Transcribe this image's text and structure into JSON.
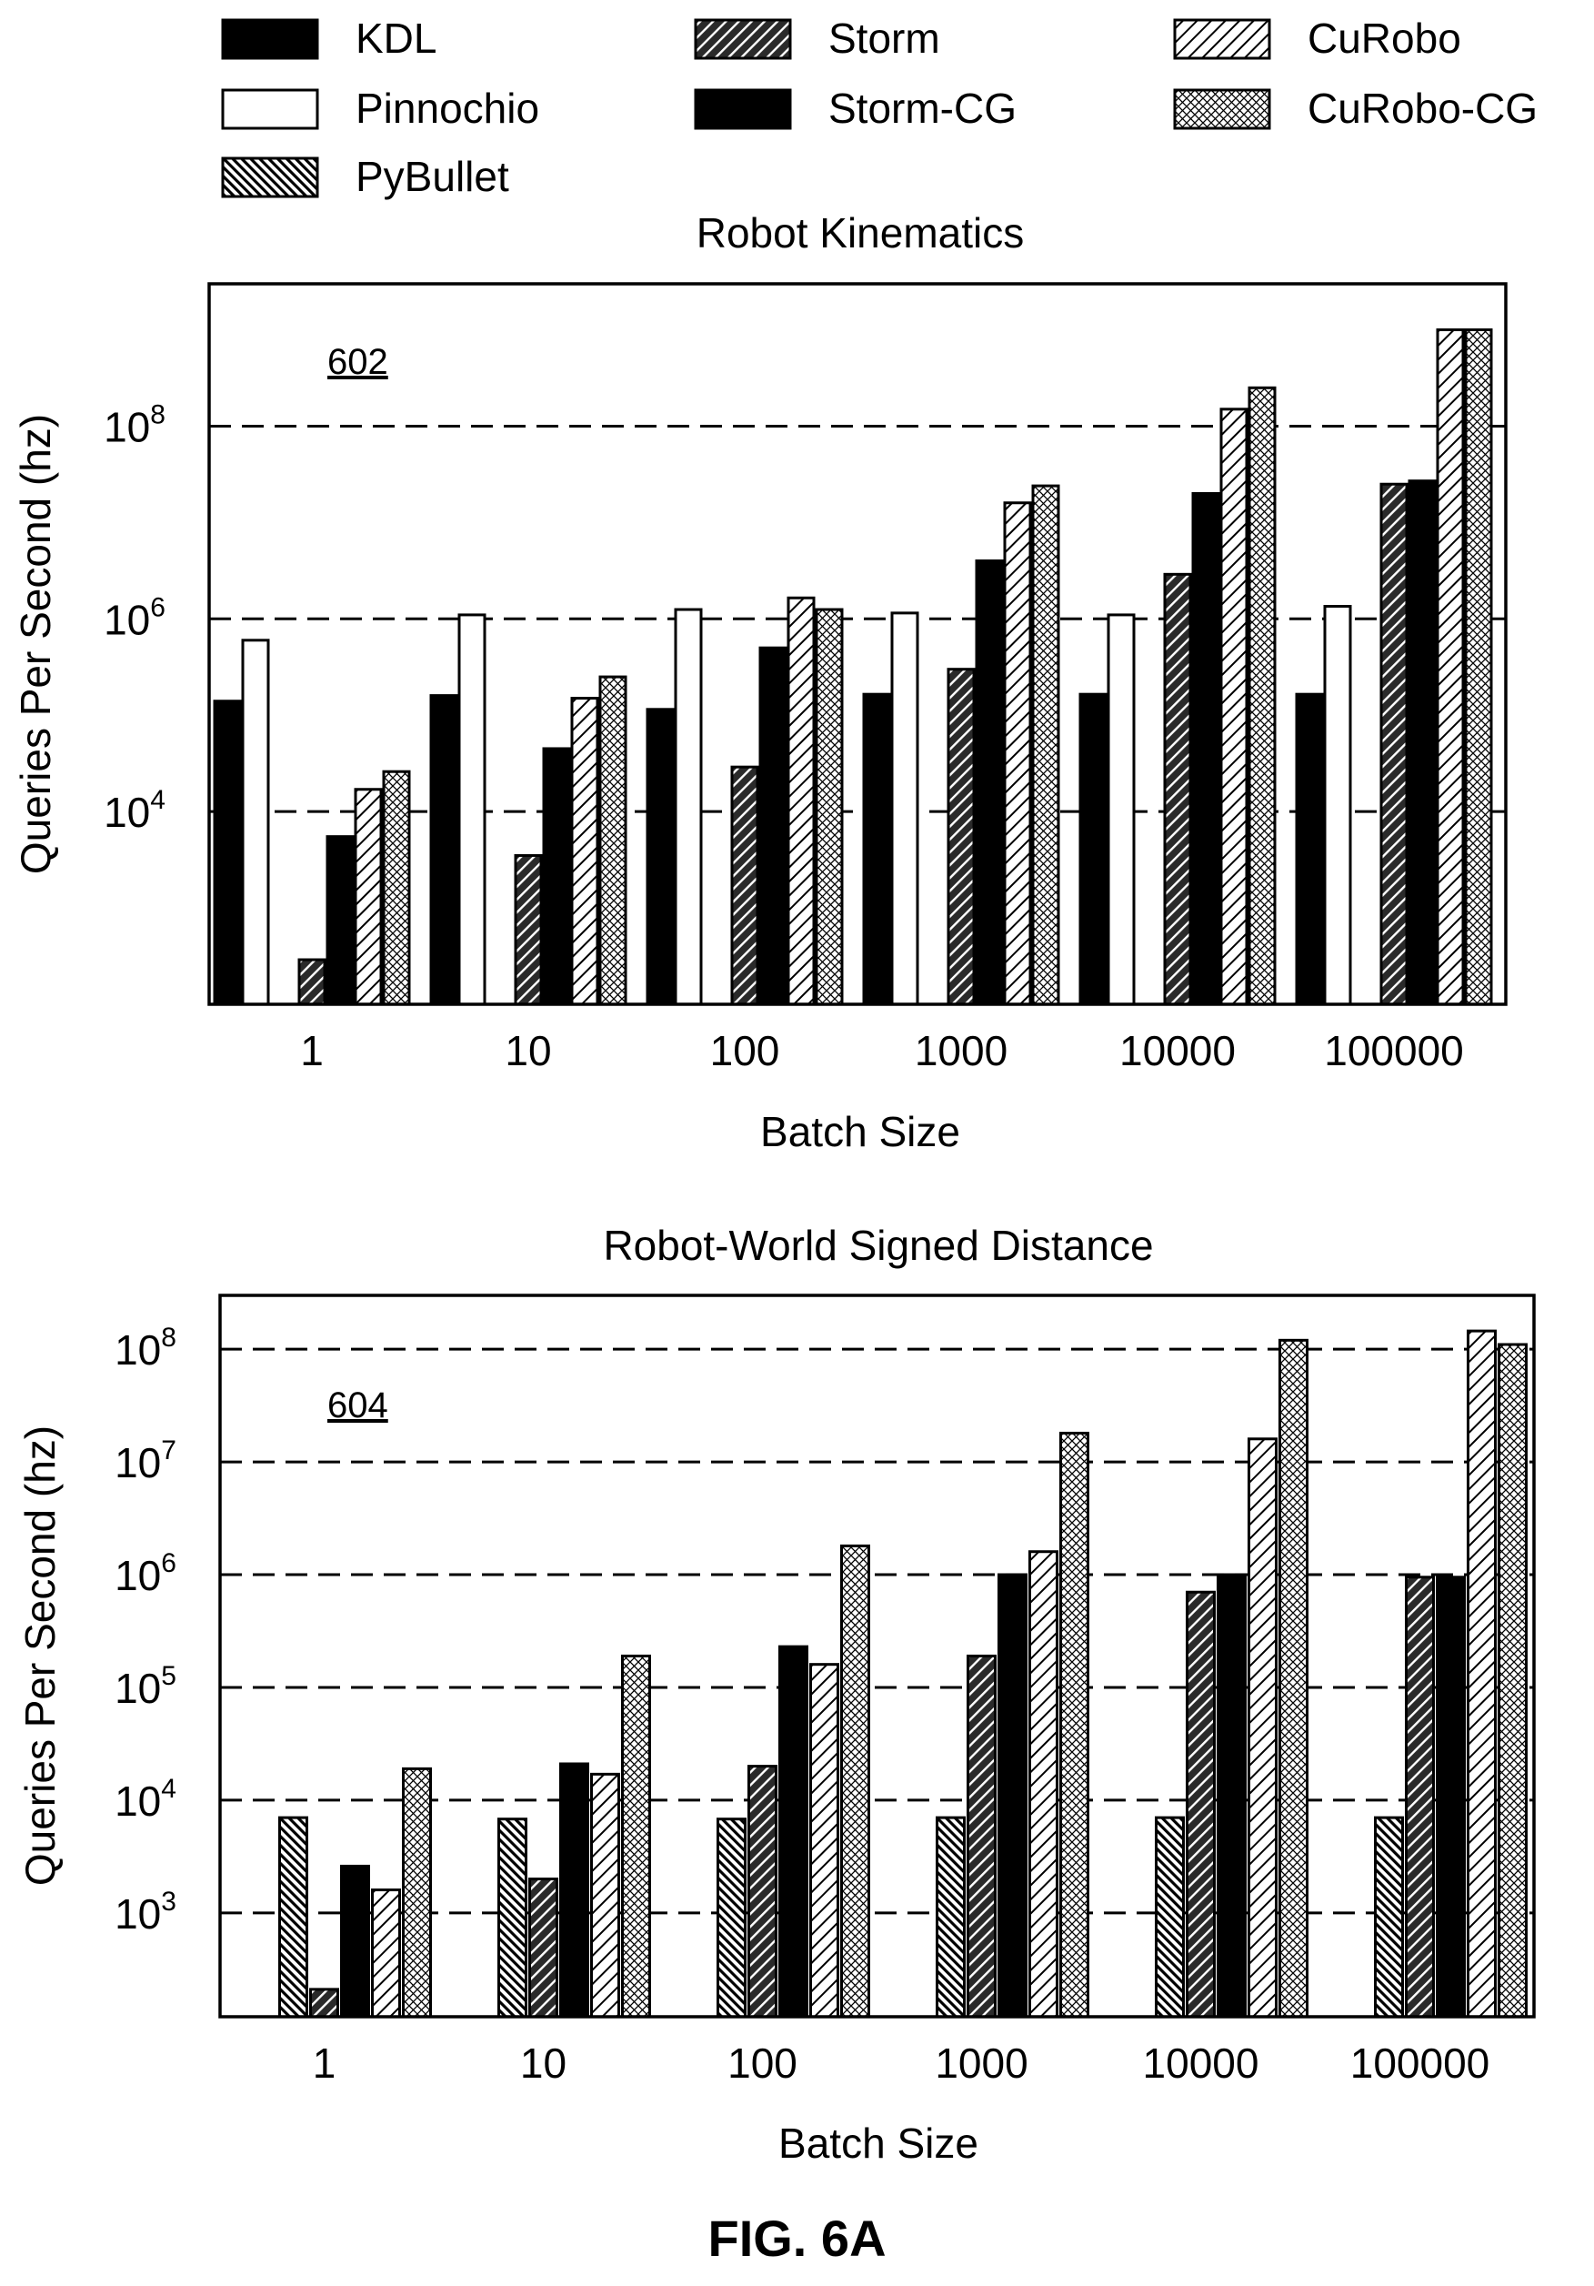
{
  "figure_caption": "FIG. 6A",
  "legend": [
    {
      "name": "KDL",
      "pattern": "solid"
    },
    {
      "name": "Pinnochio",
      "pattern": "white"
    },
    {
      "name": "PyBullet",
      "pattern": "dense-backslash"
    },
    {
      "name": "Storm",
      "pattern": "dark-slash"
    },
    {
      "name": "Storm-CG",
      "pattern": "solid"
    },
    {
      "name": "CuRobo",
      "pattern": "light-slash"
    },
    {
      "name": "CuRobo-CG",
      "pattern": "crosshatch"
    }
  ],
  "colors": {
    "ink": "#000000",
    "background": "#ffffff",
    "grid": "#000000"
  },
  "chart_data": [
    {
      "type": "bar",
      "title": "Robot Kinematics",
      "reference_numeral": "602",
      "xlabel": "Batch Size",
      "ylabel": "Queries Per Second (hz)",
      "yscale": "log",
      "ylim": [
        100,
        3000000000
      ],
      "yticks": [
        {
          "value": 10000,
          "base": "10",
          "exp": "4"
        },
        {
          "value": 1000000,
          "base": "10",
          "exp": "6"
        },
        {
          "value": 100000000,
          "base": "10",
          "exp": "8"
        }
      ],
      "grid": "horizontal dashed at labeled ticks",
      "categories": [
        "1",
        "10",
        "100",
        "1000",
        "10000",
        "100000"
      ],
      "series": [
        {
          "name": "KDL",
          "values": [
            140000,
            160000,
            115000,
            165000,
            165000,
            165000
          ]
        },
        {
          "name": "Pinnochio",
          "values": [
            600000,
            1100000,
            1250000,
            1150000,
            1100000,
            1350000
          ]
        },
        {
          "name": "PyBullet",
          "values": [
            null,
            null,
            null,
            null,
            null,
            null
          ]
        },
        {
          "name": "Storm",
          "values": [
            290,
            3500,
            29000,
            300000,
            2900000,
            25000000
          ]
        },
        {
          "name": "Storm-CG",
          "values": [
            5500,
            45000,
            500000,
            4000000,
            20000000,
            27000000
          ]
        },
        {
          "name": "CuRobo",
          "values": [
            17000,
            150000,
            1650000,
            16000000,
            150000000,
            1000000000
          ]
        },
        {
          "name": "CuRobo-CG",
          "values": [
            26000,
            250000,
            1250000,
            24000000,
            250000000,
            1000000000
          ]
        }
      ]
    },
    {
      "type": "bar",
      "title": "Robot-World Signed Distance",
      "reference_numeral": "604",
      "xlabel": "Batch Size",
      "ylabel": "Queries Per Second (hz)",
      "yscale": "log",
      "ylim": [
        120,
        300000000
      ],
      "yticks": [
        {
          "value": 1000,
          "base": "10",
          "exp": "3"
        },
        {
          "value": 10000,
          "base": "10",
          "exp": "4"
        },
        {
          "value": 100000,
          "base": "10",
          "exp": "5"
        },
        {
          "value": 1000000,
          "base": "10",
          "exp": "6"
        },
        {
          "value": 10000000,
          "base": "10",
          "exp": "7"
        },
        {
          "value": 100000000,
          "base": "10",
          "exp": "8"
        }
      ],
      "grid": "horizontal dashed at labeled ticks",
      "categories": [
        "1",
        "10",
        "100",
        "1000",
        "10000",
        "100000"
      ],
      "series": [
        {
          "name": "KDL",
          "values": [
            null,
            null,
            null,
            null,
            null,
            null
          ]
        },
        {
          "name": "Pinnochio",
          "values": [
            null,
            null,
            null,
            null,
            null,
            null
          ]
        },
        {
          "name": "PyBullet",
          "values": [
            7000,
            6800,
            6800,
            7000,
            7000,
            7000
          ]
        },
        {
          "name": "Storm",
          "values": [
            210,
            2000,
            20000,
            190000,
            700000,
            950000
          ]
        },
        {
          "name": "Storm-CG",
          "values": [
            2600,
            21000,
            230000,
            1000000,
            1000000,
            950000
          ]
        },
        {
          "name": "CuRobo",
          "values": [
            1600,
            17000,
            160000,
            1600000,
            16000000,
            145000000
          ]
        },
        {
          "name": "CuRobo-CG",
          "values": [
            19000,
            190000,
            1800000,
            18000000,
            120000000,
            110000000
          ]
        }
      ]
    }
  ]
}
